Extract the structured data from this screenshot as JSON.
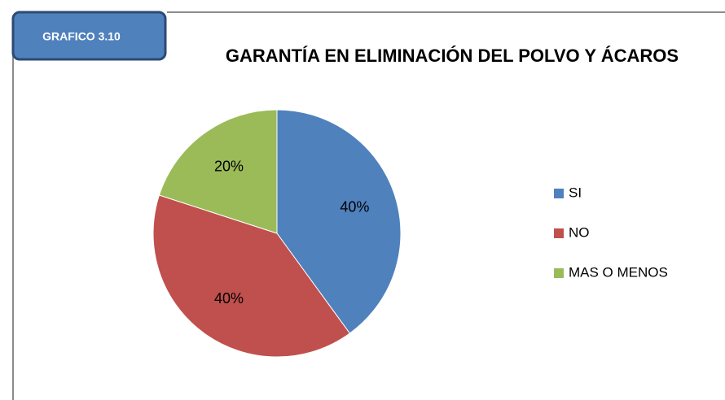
{
  "chart_data": {
    "type": "pie",
    "badge": "GRAFICO 3.10",
    "title": "GARANTÍA EN ELIMINACIÓN DEL POLVO Y ÁCAROS",
    "categories": [
      "SI",
      "NO",
      "MAS O MENOS"
    ],
    "values": [
      40,
      40,
      20
    ],
    "value_labels": [
      "40%",
      "40%",
      "20%"
    ],
    "colors": [
      "#4f81bd",
      "#c0504d",
      "#9bbb59"
    ],
    "legend": "right"
  }
}
